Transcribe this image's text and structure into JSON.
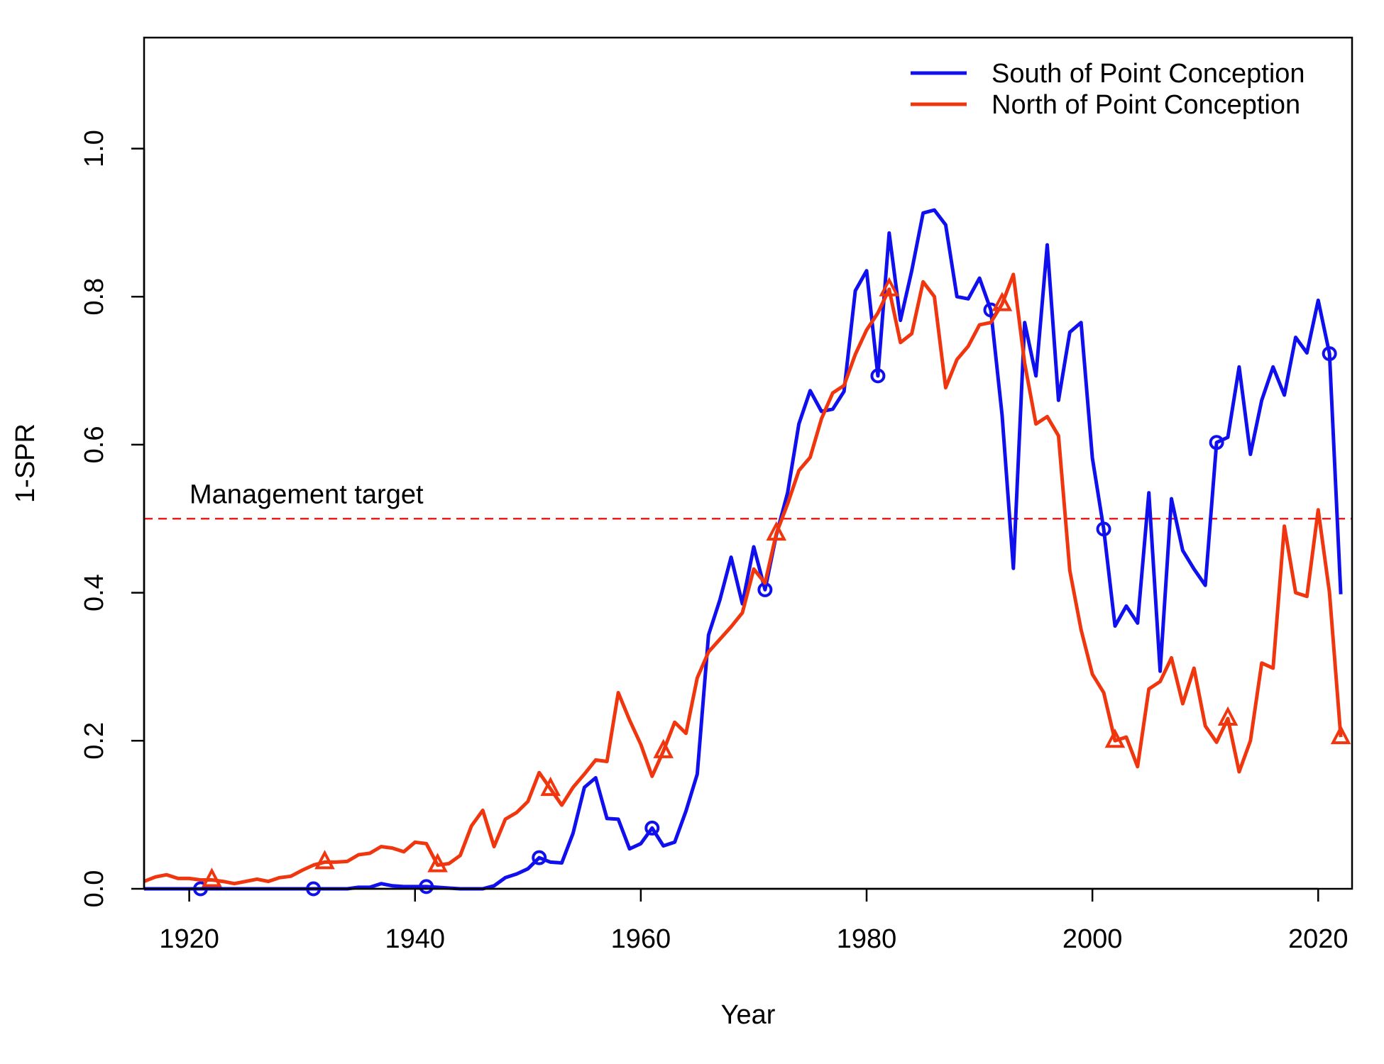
{
  "chart_data": {
    "type": "line",
    "xlabel": "Year",
    "ylabel": "1-SPR",
    "xlim": [
      1916,
      2023
    ],
    "ylim": [
      0,
      1.15
    ],
    "xticks": [
      1920,
      1940,
      1960,
      1980,
      2000,
      2020
    ],
    "xtick_labels": [
      "1920",
      "1940",
      "1960",
      "1980",
      "2000",
      "2020"
    ],
    "yticks": [
      0.0,
      0.2,
      0.4,
      0.6,
      0.8,
      1.0
    ],
    "ytick_labels": [
      "0.0",
      "0.2",
      "0.4",
      "0.6",
      "0.8",
      "1.0"
    ],
    "grid": false,
    "legend_position": "top-right",
    "reference_line": {
      "y": 0.5,
      "label": "Management target",
      "color": "#ee1c1c",
      "style": "dashed"
    },
    "series": [
      {
        "name": "South of Point Conception",
        "color": "#1010ee",
        "marker": "circle",
        "marker_every": 10,
        "marker_offset": 5,
        "x": [
          1916,
          1917,
          1918,
          1919,
          1920,
          1921,
          1922,
          1923,
          1924,
          1925,
          1926,
          1927,
          1928,
          1929,
          1930,
          1931,
          1932,
          1933,
          1934,
          1935,
          1936,
          1937,
          1938,
          1939,
          1940,
          1941,
          1942,
          1943,
          1944,
          1945,
          1946,
          1947,
          1948,
          1949,
          1950,
          1951,
          1952,
          1953,
          1954,
          1955,
          1956,
          1957,
          1958,
          1959,
          1960,
          1961,
          1962,
          1963,
          1964,
          1965,
          1966,
          1967,
          1968,
          1969,
          1970,
          1971,
          1972,
          1973,
          1974,
          1975,
          1976,
          1977,
          1978,
          1979,
          1980,
          1981,
          1982,
          1983,
          1984,
          1985,
          1986,
          1987,
          1988,
          1989,
          1990,
          1991,
          1992,
          1993,
          1994,
          1995,
          1996,
          1997,
          1998,
          1999,
          2000,
          2001,
          2002,
          2003,
          2004,
          2005,
          2006,
          2007,
          2008,
          2009,
          2010,
          2011,
          2012,
          2013,
          2014,
          2015,
          2016,
          2017,
          2018,
          2019,
          2020,
          2021,
          2022
        ],
        "y": [
          0.0,
          0.0,
          0.0,
          0.0,
          0.0,
          0.0,
          0.0,
          0.0,
          0.0,
          0.0,
          0.0,
          0.0,
          0.0,
          0.0,
          0.0,
          0.0,
          0.0,
          0.0,
          0.0,
          0.002,
          0.002,
          0.007,
          0.004,
          0.003,
          0.003,
          0.003,
          0.002,
          0.001,
          0.0,
          0.0,
          0.0,
          0.004,
          0.015,
          0.02,
          0.027,
          0.042,
          0.036,
          0.035,
          0.075,
          0.137,
          0.15,
          0.095,
          0.094,
          0.054,
          0.061,
          0.082,
          0.058,
          0.063,
          0.105,
          0.155,
          0.343,
          0.39,
          0.448,
          0.385,
          0.462,
          0.404,
          0.478,
          0.535,
          0.628,
          0.673,
          0.645,
          0.648,
          0.672,
          0.808,
          0.835,
          0.693,
          0.886,
          0.768,
          0.835,
          0.913,
          0.917,
          0.897,
          0.8,
          0.797,
          0.825,
          0.782,
          0.64,
          0.433,
          0.765,
          0.693,
          0.87,
          0.66,
          0.752,
          0.765,
          0.582,
          0.486,
          0.355,
          0.382,
          0.359,
          0.535,
          0.294,
          0.527,
          0.457,
          0.432,
          0.41,
          0.603,
          0.61,
          0.705,
          0.587,
          0.66,
          0.705,
          0.667,
          0.745,
          0.724,
          0.795,
          0.723,
          0.398
        ]
      },
      {
        "name": "North of Point Conception",
        "color": "#f0360e",
        "marker": "triangle",
        "marker_every": 10,
        "marker_offset": 6,
        "x": [
          1916,
          1917,
          1918,
          1919,
          1920,
          1921,
          1922,
          1923,
          1924,
          1925,
          1926,
          1927,
          1928,
          1929,
          1930,
          1931,
          1932,
          1933,
          1934,
          1935,
          1936,
          1937,
          1938,
          1939,
          1940,
          1941,
          1942,
          1943,
          1944,
          1945,
          1946,
          1947,
          1948,
          1949,
          1950,
          1951,
          1952,
          1953,
          1954,
          1955,
          1956,
          1957,
          1958,
          1959,
          1960,
          1961,
          1962,
          1963,
          1964,
          1965,
          1966,
          1967,
          1968,
          1969,
          1970,
          1971,
          1972,
          1973,
          1974,
          1975,
          1976,
          1977,
          1978,
          1979,
          1980,
          1981,
          1982,
          1983,
          1984,
          1985,
          1986,
          1987,
          1988,
          1989,
          1990,
          1991,
          1992,
          1993,
          1994,
          1995,
          1996,
          1997,
          1998,
          1999,
          2000,
          2001,
          2002,
          2003,
          2004,
          2005,
          2006,
          2007,
          2008,
          2009,
          2010,
          2011,
          2012,
          2013,
          2014,
          2015,
          2016,
          2017,
          2018,
          2019,
          2020,
          2021,
          2022
        ],
        "y": [
          0.01,
          0.016,
          0.019,
          0.014,
          0.014,
          0.012,
          0.012,
          0.01,
          0.007,
          0.01,
          0.013,
          0.01,
          0.015,
          0.017,
          0.025,
          0.032,
          0.036,
          0.036,
          0.037,
          0.046,
          0.048,
          0.057,
          0.055,
          0.05,
          0.063,
          0.061,
          0.032,
          0.034,
          0.045,
          0.085,
          0.106,
          0.057,
          0.094,
          0.103,
          0.118,
          0.157,
          0.135,
          0.113,
          0.137,
          0.155,
          0.174,
          0.172,
          0.265,
          0.228,
          0.195,
          0.152,
          0.186,
          0.225,
          0.21,
          0.285,
          0.32,
          0.337,
          0.354,
          0.373,
          0.432,
          0.413,
          0.48,
          0.52,
          0.565,
          0.583,
          0.635,
          0.67,
          0.68,
          0.722,
          0.755,
          0.778,
          0.81,
          0.738,
          0.75,
          0.82,
          0.8,
          0.677,
          0.715,
          0.733,
          0.762,
          0.765,
          0.79,
          0.83,
          0.71,
          0.628,
          0.638,
          0.612,
          0.43,
          0.35,
          0.29,
          0.265,
          0.2,
          0.205,
          0.165,
          0.27,
          0.28,
          0.312,
          0.25,
          0.298,
          0.22,
          0.198,
          0.23,
          0.158,
          0.2,
          0.305,
          0.298,
          0.49,
          0.4,
          0.395,
          0.512,
          0.4,
          0.205
        ]
      }
    ]
  }
}
